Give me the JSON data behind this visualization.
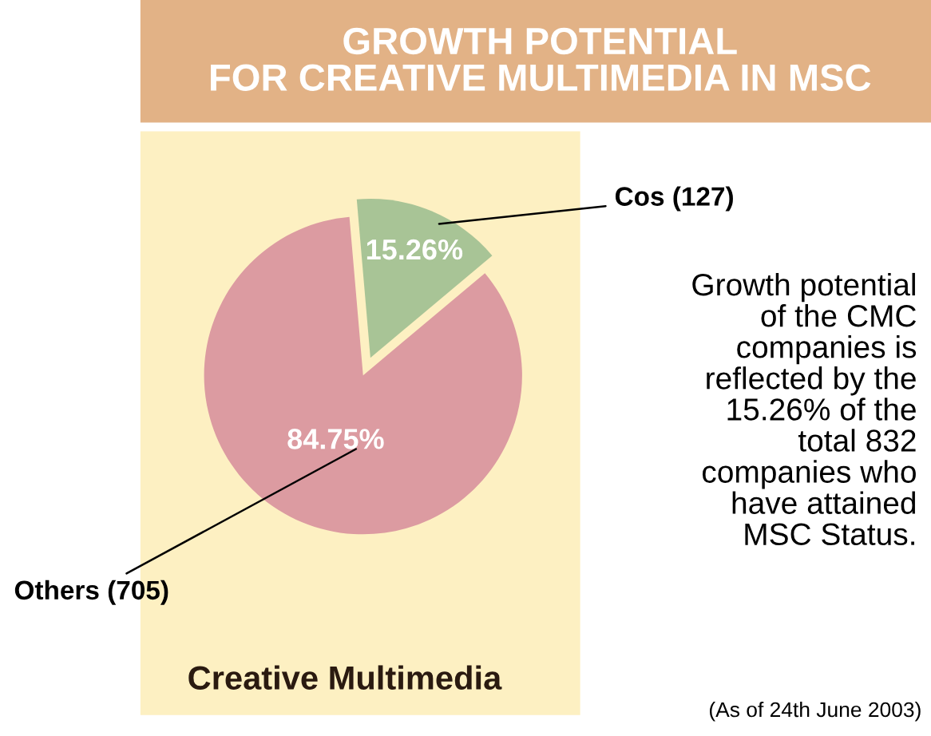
{
  "chart_data": {
    "type": "pie",
    "title": "GROWTH POTENTIAL\nFOR CREATIVE MULTIMEDIA IN MSC",
    "subtitle": "Creative Multimedia",
    "categories": [
      "Cos (127)",
      "Others (705)"
    ],
    "values": [
      15.26,
      84.75
    ],
    "value_labels": [
      "15.26%",
      "84.75%"
    ],
    "colors": [
      "#a8c496",
      "#dc9ba1"
    ],
    "annotations": [
      "Growth potential\nof the CMC\ncompanies is\nreflected by the\n15.26% of the\ntotal 832\ncompanies who\nhave attained\nMSC Status.",
      "(As of 24th June 2003)"
    ]
  }
}
